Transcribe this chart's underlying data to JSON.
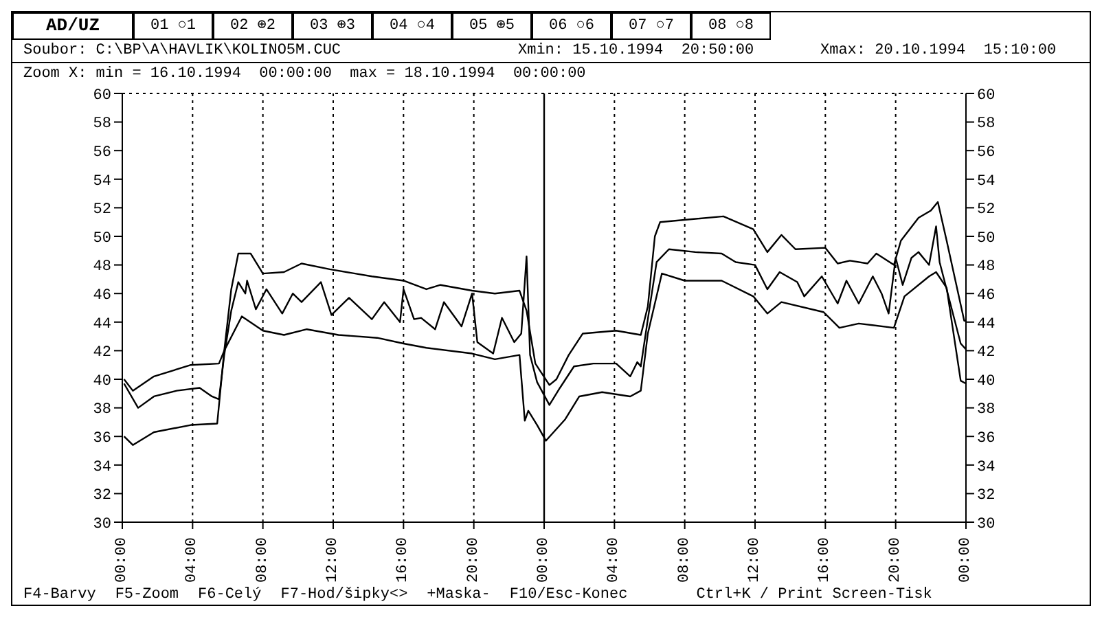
{
  "chart_data": {
    "type": "line",
    "annotations": [
      "AD/UZ",
      "01 ○1",
      "02 ⊕2",
      "03 ⊕3",
      "04 ○4",
      "05 ⊕5",
      "06 ○6",
      "07 ○7",
      "08 ○8",
      "Soubor: C:\\BP\\A\\HAVLIK\\KOLINO5M.CUC",
      "Xmin: 15.10.1994  20:50:00",
      "Xmax: 20.10.1994  15:10:00",
      "Zoom X: min = 16.10.1994  00:00:00  max = 18.10.1994  00:00:00",
      "F4-Barvy",
      "F5-Zoom",
      "F6-Celý",
      "F7-Hod/šipky<>",
      "+Maska-",
      "F10/Esc-Konec",
      "Ctrl+K / Print Screen-Tisk"
    ],
    "series": [
      {
        "color": "#000000",
        "x": [
          "1994-10-16T00:06",
          "1994-10-16T00:36",
          "1994-10-16T01:48",
          "1994-10-16T03:54",
          "1994-10-16T05:30",
          "1994-10-16T05:48",
          "1994-10-16T06:12",
          "1994-10-16T06:36",
          "1994-10-16T07:18",
          "1994-10-16T08:00",
          "1994-10-16T09:12",
          "1994-10-16T10:12",
          "1994-10-16T11:48",
          "1994-10-16T14:12",
          "1994-10-16T16:00",
          "1994-10-16T17:18",
          "1994-10-16T18:06",
          "1994-10-16T19:54",
          "1994-10-16T21:12",
          "1994-10-16T22:36",
          "1994-10-16T23:00",
          "1994-10-16T23:30",
          "1994-10-17T00:18",
          "1994-10-17T00:42",
          "1994-10-17T01:24",
          "1994-10-17T02:12",
          "1994-10-17T04:06",
          "1994-10-17T05:30",
          "1994-10-17T05:54",
          "1994-10-17T06:18",
          "1994-10-17T06:36",
          "1994-10-17T10:12",
          "1994-10-17T11:54",
          "1994-10-17T12:42",
          "1994-10-17T13:30",
          "1994-10-17T14:18",
          "1994-10-17T16:00",
          "1994-10-17T16:42",
          "1994-10-17T17:24",
          "1994-10-17T18:24",
          "1994-10-17T18:54",
          "1994-10-17T19:54",
          "1994-10-17T20:18",
          "1994-10-17T21:18",
          "1994-10-17T22:00",
          "1994-10-17T22:24",
          "1994-10-17T22:54",
          "1994-10-17T23:54",
          "1994-10-18T00:00"
        ],
        "values": [
          40,
          39.2,
          40.2,
          41,
          41.1,
          42,
          46.3,
          48.8,
          48.8,
          47.4,
          47.5,
          48.1,
          47.7,
          47.2,
          46.9,
          46.3,
          46.6,
          46.2,
          46,
          46.2,
          44.8,
          41.1,
          39.6,
          40,
          41.7,
          43.2,
          43.4,
          43.1,
          45.1,
          50,
          51,
          51.4,
          50.5,
          48.9,
          50.1,
          49.1,
          49.2,
          48.1,
          48.3,
          48.1,
          48.8,
          48,
          49.7,
          51.3,
          51.8,
          52.4,
          49.7,
          44.1,
          44.1
        ]
      },
      {
        "color": "#000000",
        "x": [
          "1994-10-16T00:06",
          "1994-10-16T00:54",
          "1994-10-16T01:48",
          "1994-10-16T03:06",
          "1994-10-16T04:24",
          "1994-10-16T05:06",
          "1994-10-16T05:30",
          "1994-10-16T05:48",
          "1994-10-16T06:12",
          "1994-10-16T06:36",
          "1994-10-16T07:00",
          "1994-10-16T07:06",
          "1994-10-16T07:36",
          "1994-10-16T08:12",
          "1994-10-16T09:06",
          "1994-10-16T09:42",
          "1994-10-16T10:12",
          "1994-10-16T11:18",
          "1994-10-16T11:54",
          "1994-10-16T12:54",
          "1994-10-16T14:12",
          "1994-10-16T14:54",
          "1994-10-16T15:48",
          "1994-10-16T16:00",
          "1994-10-16T16:36",
          "1994-10-16T17:00",
          "1994-10-16T17:48",
          "1994-10-16T18:18",
          "1994-10-16T19:18",
          "1994-10-16T19:54",
          "1994-10-16T20:12",
          "1994-10-16T21:06",
          "1994-10-16T21:36",
          "1994-10-16T22:18",
          "1994-10-16T22:42",
          "1994-10-16T23:00",
          "1994-10-16T23:12",
          "1994-10-16T23:36",
          "1994-10-17T00:18",
          "1994-10-17T00:54",
          "1994-10-17T01:42",
          "1994-10-17T02:48",
          "1994-10-17T04:06",
          "1994-10-17T04:54",
          "1994-10-17T05:18",
          "1994-10-17T05:30",
          "1994-10-17T05:54",
          "1994-10-17T06:24",
          "1994-10-17T07:06",
          "1994-10-17T08:36",
          "1994-10-17T10:06",
          "1994-10-17T10:54",
          "1994-10-17T12:00",
          "1994-10-17T12:42",
          "1994-10-17T13:24",
          "1994-10-17T14:24",
          "1994-10-17T14:48",
          "1994-10-17T15:48",
          "1994-10-17T16:42",
          "1994-10-17T17:12",
          "1994-10-17T17:54",
          "1994-10-17T18:42",
          "1994-10-17T19:12",
          "1994-10-17T19:36",
          "1994-10-17T20:00",
          "1994-10-17T20:24",
          "1994-10-17T20:54",
          "1994-10-17T21:18",
          "1994-10-17T21:54",
          "1994-10-17T22:18",
          "1994-10-17T22:30",
          "1994-10-17T23:42",
          "1994-10-18T00:00"
        ],
        "values": [
          39.7,
          38,
          38.8,
          39.2,
          39.4,
          38.8,
          38.6,
          41.7,
          44.8,
          46.8,
          46,
          46.9,
          44.9,
          46.3,
          44.6,
          46,
          45.4,
          46.8,
          44.5,
          45.7,
          44.2,
          45.4,
          44,
          46.3,
          44.2,
          44.3,
          43.5,
          45.4,
          43.7,
          46,
          42.6,
          41.8,
          44.3,
          42.6,
          43.2,
          48.6,
          41.7,
          39.8,
          38.2,
          39.4,
          40.9,
          41.1,
          41.1,
          40.2,
          41.2,
          40.9,
          44.2,
          48.2,
          49.1,
          48.9,
          48.8,
          48.2,
          48,
          46.3,
          47.5,
          46.8,
          45.8,
          47.2,
          45.3,
          46.9,
          45.3,
          47.2,
          46,
          44.6,
          48.5,
          46.6,
          48.5,
          48.9,
          48,
          50.7,
          48.2,
          42.5,
          42.1
        ]
      },
      {
        "color": "#000000",
        "x": [
          "1994-10-16T00:06",
          "1994-10-16T00:36",
          "1994-10-16T01:48",
          "1994-10-16T03:54",
          "1994-10-16T05:24",
          "1994-10-16T05:48",
          "1994-10-16T06:48",
          "1994-10-16T08:00",
          "1994-10-16T09:12",
          "1994-10-16T10:30",
          "1994-10-16T12:18",
          "1994-10-16T14:30",
          "1994-10-16T16:00",
          "1994-10-16T17:18",
          "1994-10-16T19:54",
          "1994-10-16T21:12",
          "1994-10-16T22:36",
          "1994-10-16T22:54",
          "1994-10-16T23:06",
          "1994-10-16T23:36",
          "1994-10-17T00:06",
          "1994-10-17T01:12",
          "1994-10-17T02:00",
          "1994-10-17T03:18",
          "1994-10-17T04:54",
          "1994-10-17T05:30",
          "1994-10-17T05:54",
          "1994-10-17T06:42",
          "1994-10-17T08:00",
          "1994-10-17T10:06",
          "1994-10-17T11:54",
          "1994-10-17T12:42",
          "1994-10-17T13:30",
          "1994-10-17T15:54",
          "1994-10-17T16:48",
          "1994-10-17T17:54",
          "1994-10-17T19:54",
          "1994-10-17T20:30",
          "1994-10-17T21:54",
          "1994-10-17T22:18",
          "1994-10-17T22:54",
          "1994-10-17T23:42",
          "1994-10-18T00:00"
        ],
        "values": [
          36,
          35.4,
          36.3,
          36.8,
          36.9,
          42,
          44.4,
          43.4,
          43.1,
          43.5,
          43.1,
          42.9,
          42.5,
          42.2,
          41.8,
          41.4,
          41.7,
          37.1,
          37.8,
          36.8,
          35.7,
          37.2,
          38.8,
          39.1,
          38.8,
          39.2,
          43.2,
          47.4,
          46.9,
          46.9,
          45.8,
          44.6,
          45.4,
          44.7,
          43.6,
          43.9,
          43.6,
          45.8,
          47.2,
          47.5,
          46.4,
          39.9,
          39.7
        ]
      }
    ],
    "xlim": [
      "1994-10-16T00:00",
      "1994-10-18T00:00"
    ],
    "xticks": [
      {
        "value": "1994-10-16T00:00",
        "label": "00:00"
      },
      {
        "value": "1994-10-16T04:00",
        "label": "04:00"
      },
      {
        "value": "1994-10-16T08:00",
        "label": "08:00"
      },
      {
        "value": "1994-10-16T12:00",
        "label": "12:00"
      },
      {
        "value": "1994-10-16T16:00",
        "label": "16:00"
      },
      {
        "value": "1994-10-16T20:00",
        "label": "20:00"
      },
      {
        "value": "1994-10-17T00:00",
        "label": "00:00"
      },
      {
        "value": "1994-10-17T04:00",
        "label": "04:00"
      },
      {
        "value": "1994-10-17T08:00",
        "label": "08:00"
      },
      {
        "value": "1994-10-17T12:00",
        "label": "12:00"
      },
      {
        "value": "1994-10-17T16:00",
        "label": "16:00"
      },
      {
        "value": "1994-10-17T20:00",
        "label": "20:00"
      },
      {
        "value": "1994-10-18T00:00",
        "label": "00:00"
      }
    ],
    "ylim": [
      30,
      60
    ],
    "yticks": [
      30,
      32,
      34,
      36,
      38,
      40,
      42,
      44,
      46,
      48,
      50,
      52,
      54,
      56,
      58,
      60
    ],
    "y2lim": [
      30,
      60
    ],
    "y2ticks": [
      30,
      32,
      34,
      36,
      38,
      40,
      42,
      44,
      46,
      48,
      50,
      52,
      54,
      56,
      58,
      60
    ],
    "ref_lines": [
      {
        "axis": "x",
        "value": "1994-10-17T00:00",
        "color": "#000000"
      }
    ],
    "grid": true,
    "marker": "none",
    "line_style": "solid"
  }
}
